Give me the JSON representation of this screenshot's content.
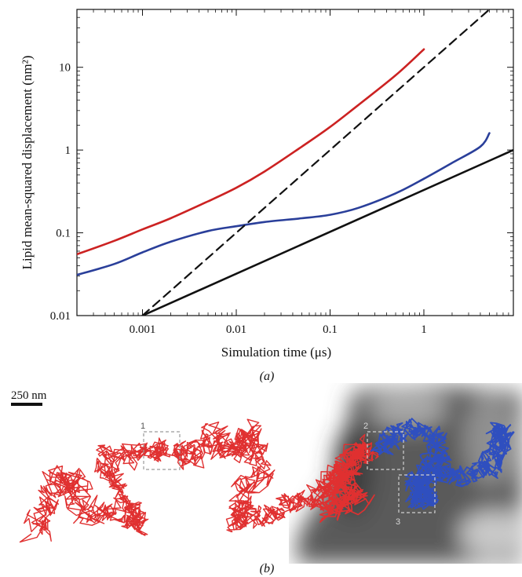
{
  "chart_data": {
    "type": "line",
    "xlabel": "Simulation time (μs)",
    "ylabel": "Lipid mean-squared displacement (nm²)",
    "xscale": "log",
    "yscale": "log",
    "xlim": [
      0.0002,
      9
    ],
    "ylim": [
      0.01,
      50
    ],
    "x_ticks": [
      "0.001",
      "0.01",
      "0.1",
      "1"
    ],
    "x_tick_values": [
      0.001,
      0.01,
      0.1,
      1
    ],
    "y_ticks": [
      "0.01",
      "0.1",
      "1",
      "10"
    ],
    "y_tick_values": [
      0.01,
      0.1,
      1,
      10
    ],
    "grid": false,
    "series": [
      {
        "color": "#cc2222",
        "style": "solid",
        "x": [
          0.0002,
          0.0005,
          0.001,
          0.002,
          0.005,
          0.01,
          0.02,
          0.05,
          0.1,
          0.2,
          0.5,
          1.0
        ],
        "y": [
          0.055,
          0.08,
          0.11,
          0.15,
          0.24,
          0.35,
          0.55,
          1.1,
          1.9,
          3.5,
          8.0,
          16.5
        ]
      },
      {
        "color": "#2a3f9a",
        "style": "solid",
        "x": [
          0.0002,
          0.0005,
          0.001,
          0.002,
          0.005,
          0.01,
          0.02,
          0.05,
          0.1,
          0.2,
          0.5,
          1.0,
          2.0,
          4.0,
          5.0
        ],
        "y": [
          0.031,
          0.042,
          0.058,
          0.078,
          0.105,
          0.12,
          0.135,
          0.15,
          0.165,
          0.2,
          0.3,
          0.45,
          0.7,
          1.1,
          1.6
        ]
      },
      {
        "color": "#111111",
        "style": "dashed",
        "x": [
          0.001,
          5.0
        ],
        "y": [
          0.01,
          50
        ]
      },
      {
        "color": "#111111",
        "style": "solid",
        "x": [
          0.001,
          9.0
        ],
        "y": [
          0.01,
          1.0
        ]
      }
    ]
  },
  "panel_a_label": "(a)",
  "panel_b_label": "(b)",
  "scale_bar_label": "250 nm",
  "boxes": [
    {
      "label": "1"
    },
    {
      "label": "2"
    },
    {
      "label": "3"
    }
  ],
  "colors": {
    "red_track": "#e03030",
    "blue_track": "#2f4fbf",
    "background": "#555555"
  }
}
